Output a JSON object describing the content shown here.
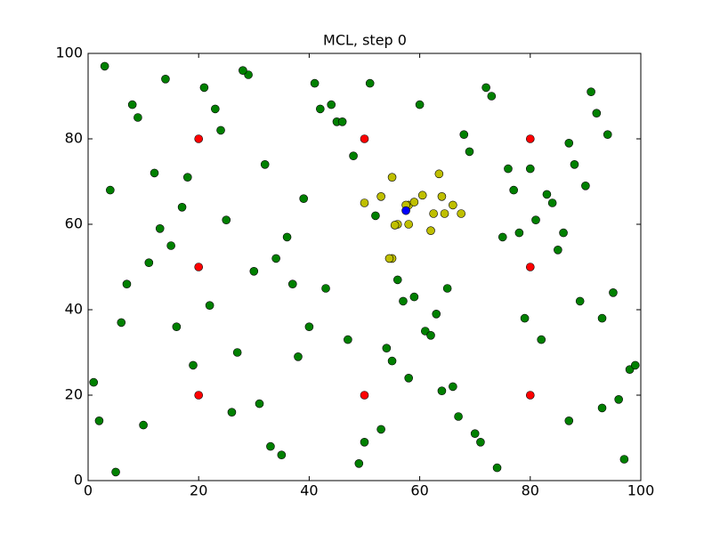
{
  "chart_data": {
    "type": "scatter",
    "title": "MCL, step 0",
    "xlim": [
      0,
      100
    ],
    "ylim": [
      0,
      100
    ],
    "xticks": [
      0,
      20,
      40,
      60,
      80,
      100
    ],
    "yticks": [
      0,
      20,
      40,
      60,
      80,
      100
    ],
    "grid": false,
    "series": [
      {
        "color": "#008000",
        "x": [
          3,
          8,
          12,
          15,
          22,
          27,
          31,
          35,
          41,
          45,
          48,
          52,
          56,
          61,
          66,
          70,
          74,
          78,
          83,
          87,
          91,
          95,
          98,
          2,
          6,
          11,
          17,
          24,
          29,
          33,
          38,
          43,
          47,
          53,
          58,
          63,
          68,
          72,
          76,
          81,
          85,
          89,
          93,
          97,
          4,
          9,
          14,
          19,
          26,
          30,
          36,
          40,
          44,
          49,
          54,
          59,
          64,
          69,
          73,
          79,
          84,
          88,
          92,
          96,
          1,
          7,
          13,
          18,
          23,
          28,
          34,
          39,
          46,
          51,
          57,
          62,
          67,
          71,
          77,
          82,
          86,
          90,
          94,
          99,
          5,
          10,
          16,
          21,
          25,
          32,
          37,
          42,
          50,
          55,
          60,
          65,
          75,
          80,
          87,
          93
        ],
        "values": [
          97,
          88,
          72,
          55,
          41,
          30,
          18,
          6,
          93,
          84,
          76,
          62,
          47,
          35,
          22,
          11,
          3,
          58,
          67,
          79,
          91,
          44,
          26,
          14,
          37,
          51,
          64,
          82,
          95,
          8,
          29,
          45,
          33,
          12,
          24,
          39,
          81,
          92,
          73,
          61,
          54,
          42,
          17,
          5,
          68,
          85,
          94,
          27,
          16,
          49,
          57,
          36,
          88,
          4,
          31,
          43,
          21,
          77,
          90,
          38,
          65,
          74,
          86,
          19,
          23,
          46,
          59,
          71,
          87,
          96,
          52,
          66,
          84,
          93,
          42,
          34,
          15,
          9,
          68,
          33,
          58,
          69,
          81,
          27,
          2,
          13,
          36,
          92,
          61,
          74,
          46,
          87,
          9,
          28,
          88,
          45,
          57,
          73,
          14,
          38
        ]
      },
      {
        "color": "#ff0000",
        "x": [
          20,
          50,
          80,
          20,
          80,
          20,
          50,
          80
        ],
        "values": [
          80,
          80,
          80,
          50,
          50,
          20,
          20,
          20
        ]
      },
      {
        "color": "#bfbf00",
        "x": [
          50,
          53,
          55,
          58,
          59,
          60.5,
          63.5,
          64,
          62.5,
          64.5,
          66,
          67.5,
          62,
          56,
          55.5,
          55,
          54.5,
          58,
          57.5
        ],
        "values": [
          65,
          66.5,
          71,
          64.5,
          65.2,
          66.8,
          71.8,
          66.5,
          62.5,
          62.5,
          64.5,
          62.5,
          58.5,
          60,
          59.8,
          52,
          52,
          60,
          64.5
        ]
      },
      {
        "color": "#0000ff",
        "x": [
          57.5
        ],
        "values": [
          63.2
        ]
      }
    ]
  }
}
